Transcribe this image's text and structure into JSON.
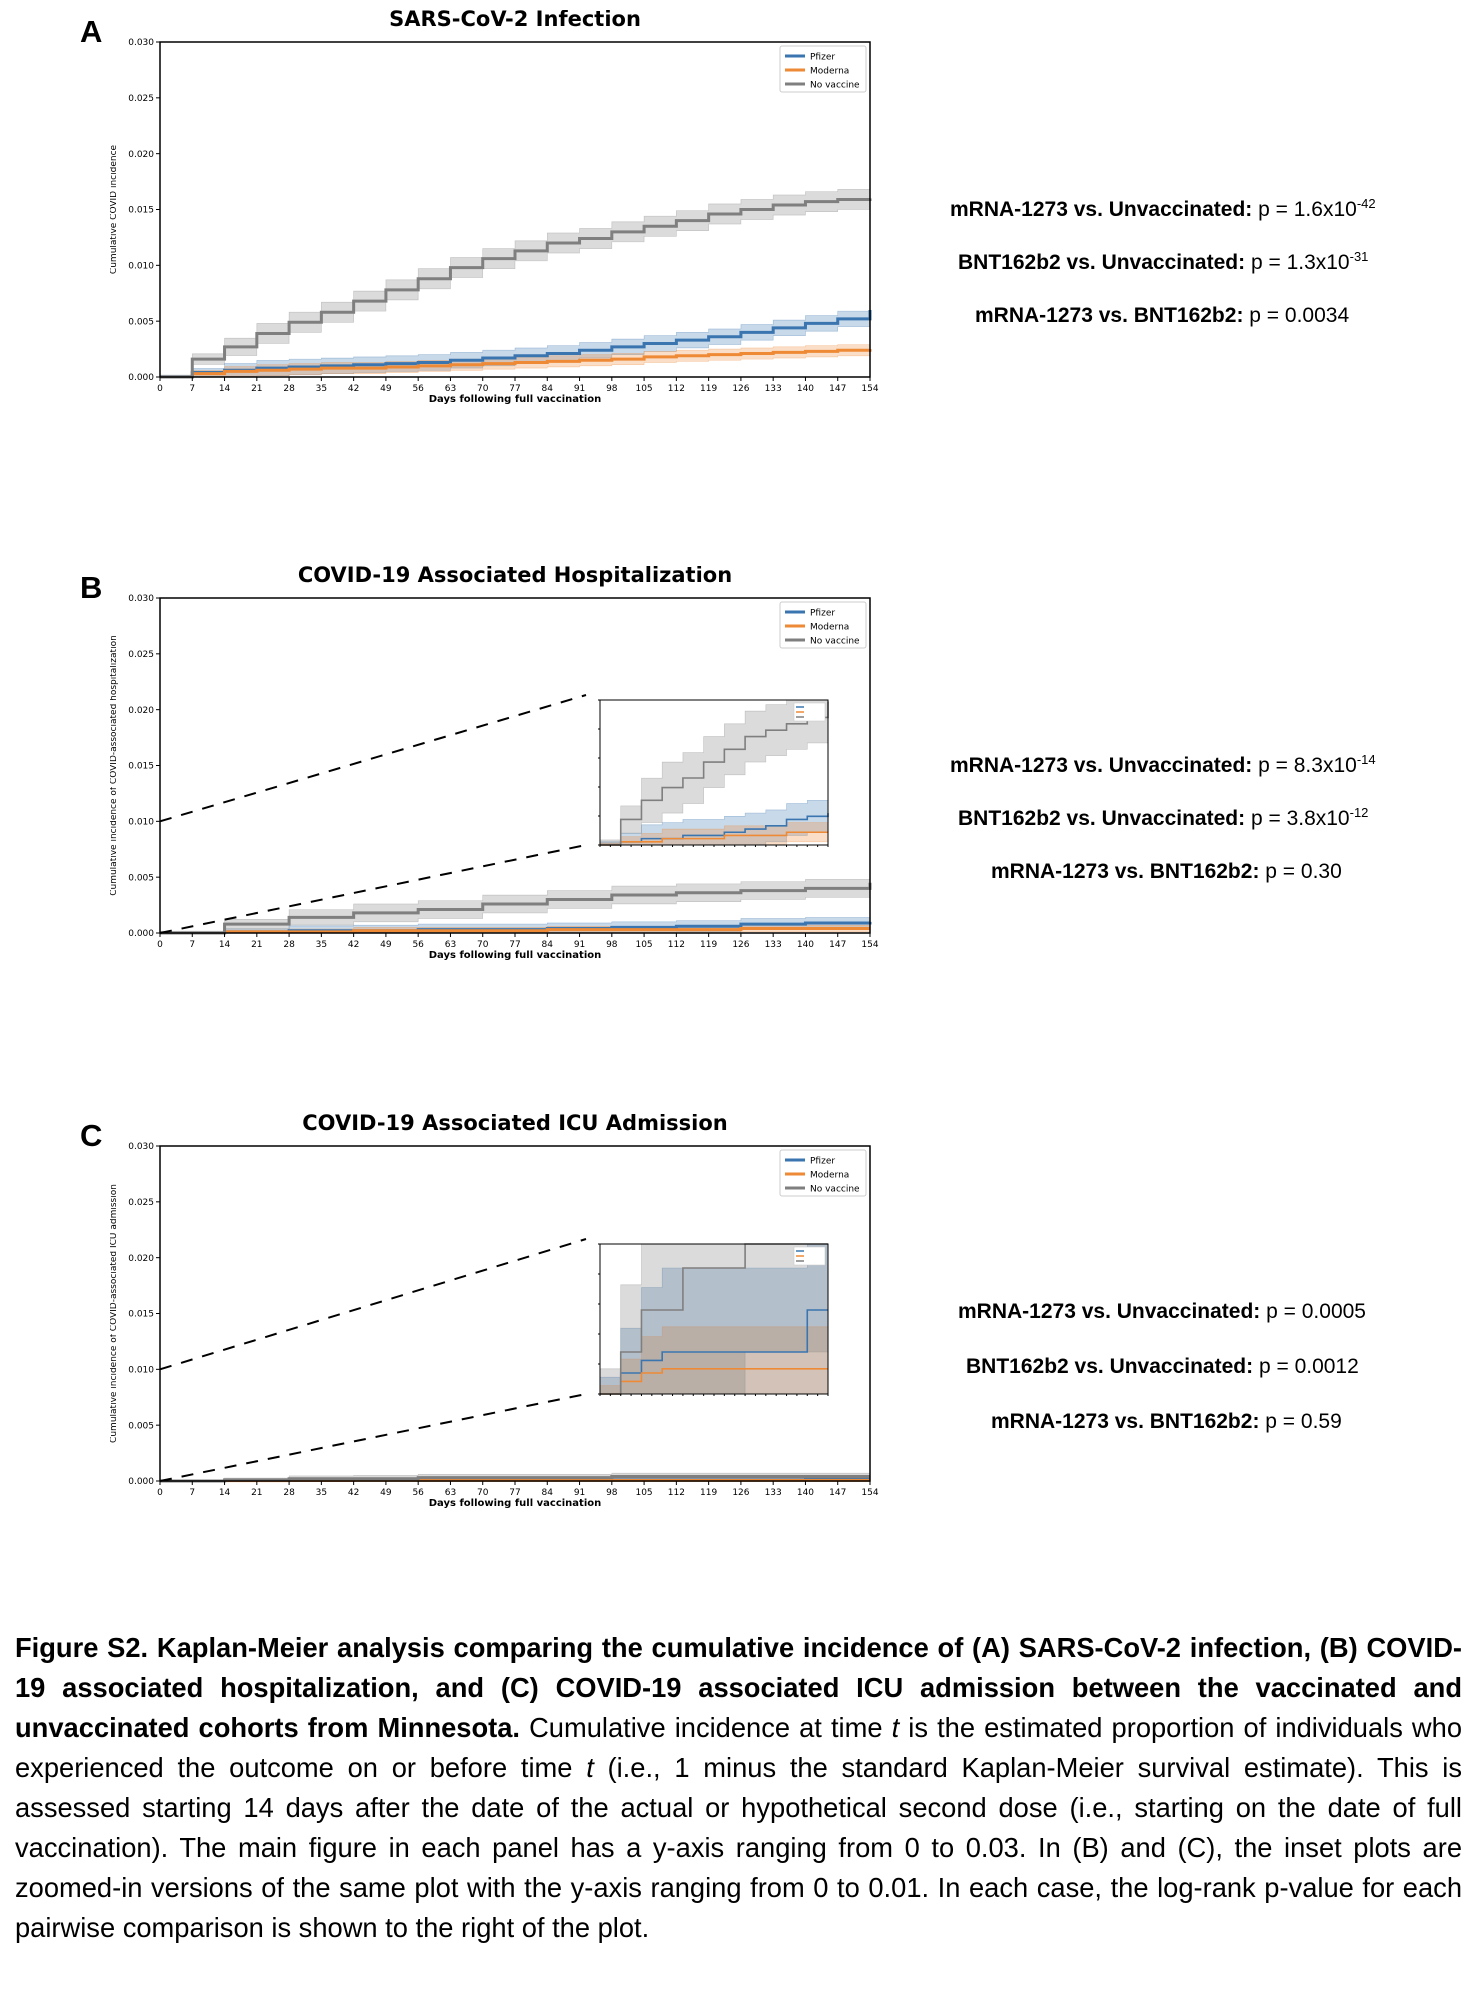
{
  "panels": [
    {
      "letter": "A",
      "stats": [
        {
          "label": "mRNA-1273 vs. Unvaccinated:",
          "p": "p = 1.6x10",
          "exp": "-42"
        },
        {
          "label": "BNT162b2 vs. Unvaccinated:",
          "p": "p = 1.3x10",
          "exp": "-31"
        },
        {
          "label": "mRNA-1273 vs. BNT162b2:",
          "p": "p = 0.0034",
          "exp": ""
        }
      ]
    },
    {
      "letter": "B",
      "stats": [
        {
          "label": "mRNA-1273 vs. Unvaccinated:",
          "p": "p = 8.3x10",
          "exp": "-14"
        },
        {
          "label": "BNT162b2 vs. Unvaccinated:",
          "p": "p = 3.8x10",
          "exp": "-12"
        },
        {
          "label": "mRNA-1273 vs. BNT162b2:",
          "p": "p = 0.30",
          "exp": ""
        }
      ]
    },
    {
      "letter": "C",
      "stats": [
        {
          "label": "mRNA-1273 vs. Unvaccinated:",
          "p": "p = 0.0005",
          "exp": ""
        },
        {
          "label": "BNT162b2 vs. Unvaccinated:",
          "p": "p = 0.0012",
          "exp": ""
        },
        {
          "label": "mRNA-1273 vs. BNT162b2:",
          "p": "p = 0.59",
          "exp": ""
        }
      ]
    }
  ],
  "colors": {
    "pfizer": "#3a75b0",
    "moderna": "#ee8a36",
    "novax": "#7f7f7f"
  },
  "chart_data": [
    {
      "type": "line",
      "title": "SARS-CoV-2 Infection",
      "xlabel": "Days following full vaccination",
      "ylabel": "Cumulative COVID incidence",
      "xlim": [
        0,
        154
      ],
      "ylim": [
        0,
        0.03
      ],
      "xticks": [
        "0",
        "7",
        "14",
        "21",
        "28",
        "35",
        "42",
        "49",
        "56",
        "63",
        "70",
        "77",
        "84",
        "91",
        "98",
        "105",
        "112",
        "119",
        "126",
        "133",
        "140",
        "147",
        "154"
      ],
      "yticks": [
        "0.000",
        "0.005",
        "0.010",
        "0.015",
        "0.020",
        "0.025",
        "0.030"
      ],
      "legend": "top-right",
      "series": [
        {
          "name": "Pfizer",
          "color": "#3a75b0",
          "x": [
            0,
            7,
            14,
            21,
            28,
            35,
            42,
            49,
            56,
            63,
            70,
            77,
            84,
            91,
            98,
            105,
            112,
            119,
            126,
            133,
            140,
            147,
            154
          ],
          "y": [
            0,
            0.0004,
            0.0006,
            0.0008,
            0.0009,
            0.001,
            0.0011,
            0.0012,
            0.0013,
            0.0015,
            0.0017,
            0.0019,
            0.0021,
            0.0024,
            0.0027,
            0.003,
            0.0033,
            0.0036,
            0.004,
            0.0044,
            0.0048,
            0.0052,
            0.006
          ],
          "band": 0.0007
        },
        {
          "name": "Moderna",
          "color": "#ee8a36",
          "x": [
            0,
            7,
            14,
            21,
            28,
            35,
            42,
            49,
            56,
            63,
            70,
            77,
            84,
            91,
            98,
            105,
            112,
            119,
            126,
            133,
            140,
            147,
            154
          ],
          "y": [
            0,
            0.0003,
            0.0005,
            0.0006,
            0.0007,
            0.0008,
            0.0008,
            0.0009,
            0.001,
            0.0011,
            0.0012,
            0.0013,
            0.0014,
            0.0015,
            0.0016,
            0.0018,
            0.0019,
            0.002,
            0.0021,
            0.0022,
            0.0023,
            0.0024,
            0.0025
          ],
          "band": 0.0005
        },
        {
          "name": "No vaccine",
          "color": "#7f7f7f",
          "x": [
            0,
            7,
            14,
            21,
            28,
            35,
            42,
            49,
            56,
            63,
            70,
            77,
            84,
            91,
            98,
            105,
            112,
            119,
            126,
            133,
            140,
            147,
            154
          ],
          "y": [
            0,
            0.0016,
            0.0027,
            0.0039,
            0.0049,
            0.0058,
            0.0068,
            0.0078,
            0.0088,
            0.0098,
            0.0106,
            0.0113,
            0.012,
            0.0124,
            0.013,
            0.0135,
            0.014,
            0.0146,
            0.015,
            0.0154,
            0.0157,
            0.0159,
            0.016
          ],
          "band": 0.0009
        }
      ]
    },
    {
      "type": "line",
      "title": "COVID-19 Associated Hospitalization",
      "xlabel": "Days following full vaccination",
      "ylabel": "Cumulative incidence of COVID-associated hospitalization",
      "xlim": [
        0,
        154
      ],
      "ylim": [
        0,
        0.03
      ],
      "xticks": [
        "0",
        "7",
        "14",
        "21",
        "28",
        "35",
        "42",
        "49",
        "56",
        "63",
        "70",
        "77",
        "84",
        "91",
        "98",
        "105",
        "112",
        "119",
        "126",
        "133",
        "140",
        "147",
        "154"
      ],
      "yticks": [
        "0.000",
        "0.005",
        "0.010",
        "0.015",
        "0.020",
        "0.025",
        "0.030"
      ],
      "legend": "top-right",
      "inset": "zoomed-in, y-axis 0 to 0.01",
      "series": [
        {
          "name": "Pfizer",
          "color": "#3a75b0",
          "x": [
            0,
            14,
            28,
            42,
            56,
            70,
            84,
            98,
            112,
            126,
            140,
            154
          ],
          "y": [
            0,
            0.0001,
            0.0002,
            0.0002,
            0.0003,
            0.0003,
            0.0004,
            0.0005,
            0.0006,
            0.0008,
            0.0009,
            0.001
          ],
          "band": 0.0005
        },
        {
          "name": "Moderna",
          "color": "#ee8a36",
          "x": [
            0,
            14,
            28,
            42,
            56,
            70,
            84,
            98,
            112,
            126,
            140,
            154
          ],
          "y": [
            0,
            0.0001,
            0.0001,
            0.0002,
            0.0002,
            0.0002,
            0.0003,
            0.0003,
            0.0003,
            0.0004,
            0.0004,
            0.0004
          ],
          "band": 0.0003
        },
        {
          "name": "No vaccine",
          "color": "#7f7f7f",
          "x": [
            0,
            14,
            28,
            42,
            56,
            70,
            84,
            98,
            112,
            126,
            140,
            154
          ],
          "y": [
            0,
            0.0008,
            0.0014,
            0.0018,
            0.0021,
            0.0026,
            0.003,
            0.0034,
            0.0036,
            0.0038,
            0.004,
            0.0045
          ],
          "band": 0.0008
        }
      ]
    },
    {
      "type": "line",
      "title": "COVID-19 Associated ICU Admission",
      "xlabel": "Days following full vaccination",
      "ylabel": "Cumulative incidence of COVID-associated ICU admission",
      "xlim": [
        0,
        154
      ],
      "ylim": [
        0,
        0.03
      ],
      "xticks": [
        "0",
        "7",
        "14",
        "21",
        "28",
        "35",
        "42",
        "49",
        "56",
        "63",
        "70",
        "77",
        "84",
        "91",
        "98",
        "105",
        "112",
        "119",
        "126",
        "133",
        "140",
        "147",
        "154"
      ],
      "yticks": [
        "0.000",
        "0.005",
        "0.010",
        "0.015",
        "0.020",
        "0.025",
        "0.030"
      ],
      "legend": "top-right",
      "inset": "zoomed-in, y-axis 0 to 0.01",
      "series": [
        {
          "name": "Pfizer",
          "color": "#3a75b0",
          "x": [
            0,
            14,
            28,
            42,
            56,
            70,
            84,
            98,
            112,
            126,
            140,
            154
          ],
          "y": [
            0,
            5e-05,
            8e-05,
            0.0001,
            0.0001,
            0.0001,
            0.0001,
            0.0001,
            0.0001,
            0.0001,
            0.0002,
            0.0002
          ],
          "band": 0.0002
        },
        {
          "name": "Moderna",
          "color": "#ee8a36",
          "x": [
            0,
            14,
            28,
            42,
            56,
            70,
            84,
            98,
            112,
            126,
            140,
            154
          ],
          "y": [
            0,
            3e-05,
            5e-05,
            6e-05,
            6e-05,
            6e-05,
            6e-05,
            6e-05,
            6e-05,
            6e-05,
            6e-05,
            6e-05
          ],
          "band": 0.0001
        },
        {
          "name": "No vaccine",
          "color": "#7f7f7f",
          "x": [
            0,
            14,
            28,
            42,
            56,
            70,
            84,
            98,
            112,
            126,
            140,
            154
          ],
          "y": [
            0,
            0.0001,
            0.0002,
            0.0002,
            0.0003,
            0.0003,
            0.0003,
            0.0004,
            0.0004,
            0.0004,
            0.0004,
            0.0004
          ],
          "band": 0.0003
        }
      ]
    }
  ],
  "caption": {
    "bold": "Figure S2. Kaplan-Meier analysis comparing the cumulative incidence of (A) SARS-CoV-2 infection, (B) COVID-19 associated hospitalization, and (C) COVID-19 associated ICU admission between the vaccinated and unvaccinated cohorts from Minnesota.",
    "part1": " Cumulative incidence at time ",
    "t1": "t",
    "part2": " is the estimated proportion of individuals who experienced the outcome on or before time ",
    "t2": "t",
    "part3": " (i.e., 1 minus the standard Kaplan-Meier survival estimate). This is assessed starting 14 days after the date of the actual or hypothetical second dose (i.e., starting on the date of full vaccination). The main figure in each panel has a y-axis ranging from 0 to 0.03. In (B) and (C), the inset plots are zoomed-in versions of the same plot with the y-axis ranging from 0 to 0.01. In each case, the log-rank p-value for each pairwise comparison is shown to the right of the plot."
  }
}
